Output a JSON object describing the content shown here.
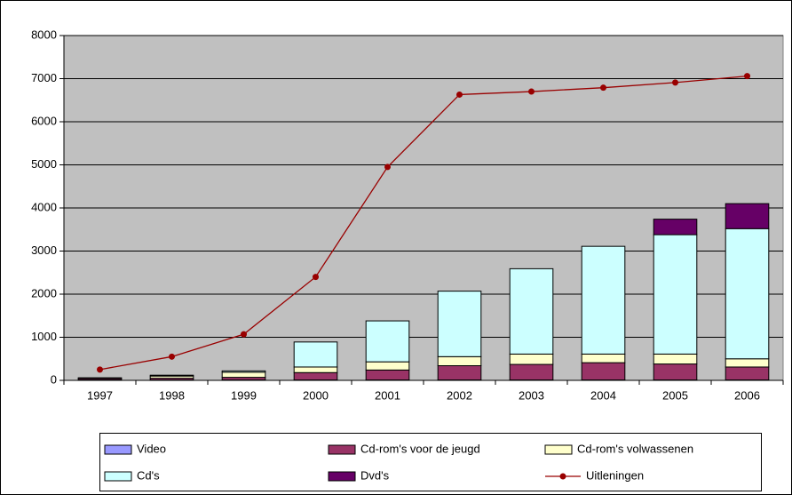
{
  "chart_data": {
    "type": "bar",
    "stacked": true,
    "categories": [
      "1997",
      "1998",
      "1999",
      "2000",
      "2001",
      "2002",
      "2003",
      "2004",
      "2005",
      "2006"
    ],
    "ylim": [
      0,
      8000
    ],
    "yticks": [
      0,
      1000,
      2000,
      3000,
      4000,
      5000,
      6000,
      7000,
      8000
    ],
    "plot_background": "#c0c0c0",
    "series": [
      {
        "name": "Video",
        "color": "#9999ff",
        "values": [
          10,
          10,
          10,
          10,
          10,
          10,
          10,
          10,
          10,
          10
        ]
      },
      {
        "name": "Cd-rom's voor de jeugd",
        "color": "#993366",
        "values": [
          30,
          40,
          60,
          170,
          230,
          330,
          360,
          400,
          370,
          300
        ]
      },
      {
        "name": "Cd-rom's volwassenen",
        "color": "#ffffcc",
        "values": [
          10,
          50,
          120,
          130,
          190,
          210,
          240,
          200,
          230,
          190
        ]
      },
      {
        "name": "Cd's",
        "color": "#ccffff",
        "values": [
          10,
          20,
          30,
          580,
          950,
          1520,
          1980,
          2500,
          2770,
          3020
        ]
      },
      {
        "name": "Dvd's",
        "color": "#660066",
        "values": [
          0,
          0,
          0,
          0,
          0,
          0,
          0,
          0,
          360,
          580
        ]
      },
      {
        "name": "Uitleningen",
        "type": "line",
        "color": "#990000",
        "values": [
          250,
          550,
          1070,
          2400,
          4950,
          6630,
          6700,
          6790,
          6910,
          7060
        ]
      }
    ]
  }
}
